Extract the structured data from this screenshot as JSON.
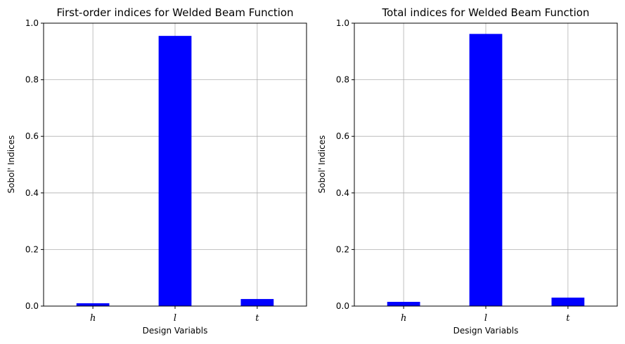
{
  "chart_data": [
    {
      "type": "bar",
      "title": "First-order indices for Welded Beam Function",
      "xlabel": "Design Variabls",
      "ylabel": "Sobol' Indices",
      "categories": [
        "h",
        "l",
        "t"
      ],
      "values": [
        0.01,
        0.955,
        0.025
      ],
      "ylim": [
        0,
        1
      ],
      "yticks": [
        "0.0",
        "0.2",
        "0.4",
        "0.6",
        "0.8",
        "1.0"
      ],
      "grid": true,
      "bar_color": "#0000ff"
    },
    {
      "type": "bar",
      "title": "Total indices for Welded Beam Function",
      "xlabel": "Design Variabls",
      "ylabel": "Sobol' Indices",
      "categories": [
        "h",
        "l",
        "t"
      ],
      "values": [
        0.015,
        0.962,
        0.03
      ],
      "ylim": [
        0,
        1
      ],
      "yticks": [
        "0.0",
        "0.2",
        "0.4",
        "0.6",
        "0.8",
        "1.0"
      ],
      "grid": true,
      "bar_color": "#0000ff"
    }
  ]
}
